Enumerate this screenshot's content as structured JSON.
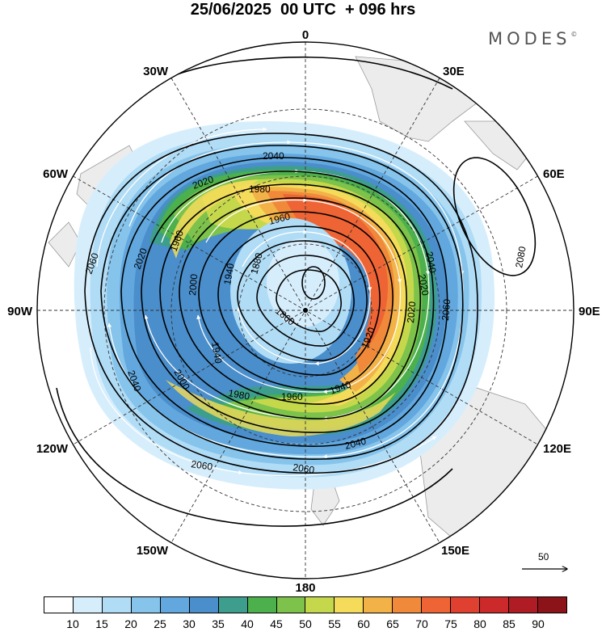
{
  "title": "25/06/2025  00 UTC  + 096 hrs",
  "brand": "MODES",
  "brand_mark": "©",
  "colorbar": {
    "colors": [
      "#ffffff",
      "#d6eefc",
      "#b0dcf6",
      "#86c4ec",
      "#62a8de",
      "#4a8ecb",
      "#3e9e8e",
      "#4cb04c",
      "#7dc24a",
      "#c5d84c",
      "#f4dc5a",
      "#f3b248",
      "#f08a3a",
      "#ee6434",
      "#e04030",
      "#cc2a2a",
      "#b01c24",
      "#8c1418"
    ],
    "labels": [
      "10",
      "15",
      "20",
      "25",
      "30",
      "35",
      "40",
      "45",
      "50",
      "55",
      "60",
      "65",
      "70",
      "75",
      "80",
      "85",
      "90"
    ]
  },
  "longitude_labels": {
    "top": "0",
    "e30": "30E",
    "e60": "60E",
    "e90": "90E",
    "e120": "120E",
    "e150": "150E",
    "bottom": "180",
    "w150": "150W",
    "w120": "120W",
    "w90": "90W",
    "w60": "60W",
    "w30": "30W"
  },
  "contour_labels": [
    "2040",
    "2020",
    "1980",
    "1960",
    "2020",
    "1960",
    "2020",
    "1880",
    "1940",
    "1860",
    "1920",
    "2060",
    "2000",
    "1940",
    "2000",
    "2040",
    "1980",
    "1960",
    "1940",
    "2040",
    "2060",
    "2060",
    "2020",
    "2040",
    "2060",
    "2080"
  ],
  "reference_vector": "50",
  "icons": [
    "north-pole-dot"
  ]
}
